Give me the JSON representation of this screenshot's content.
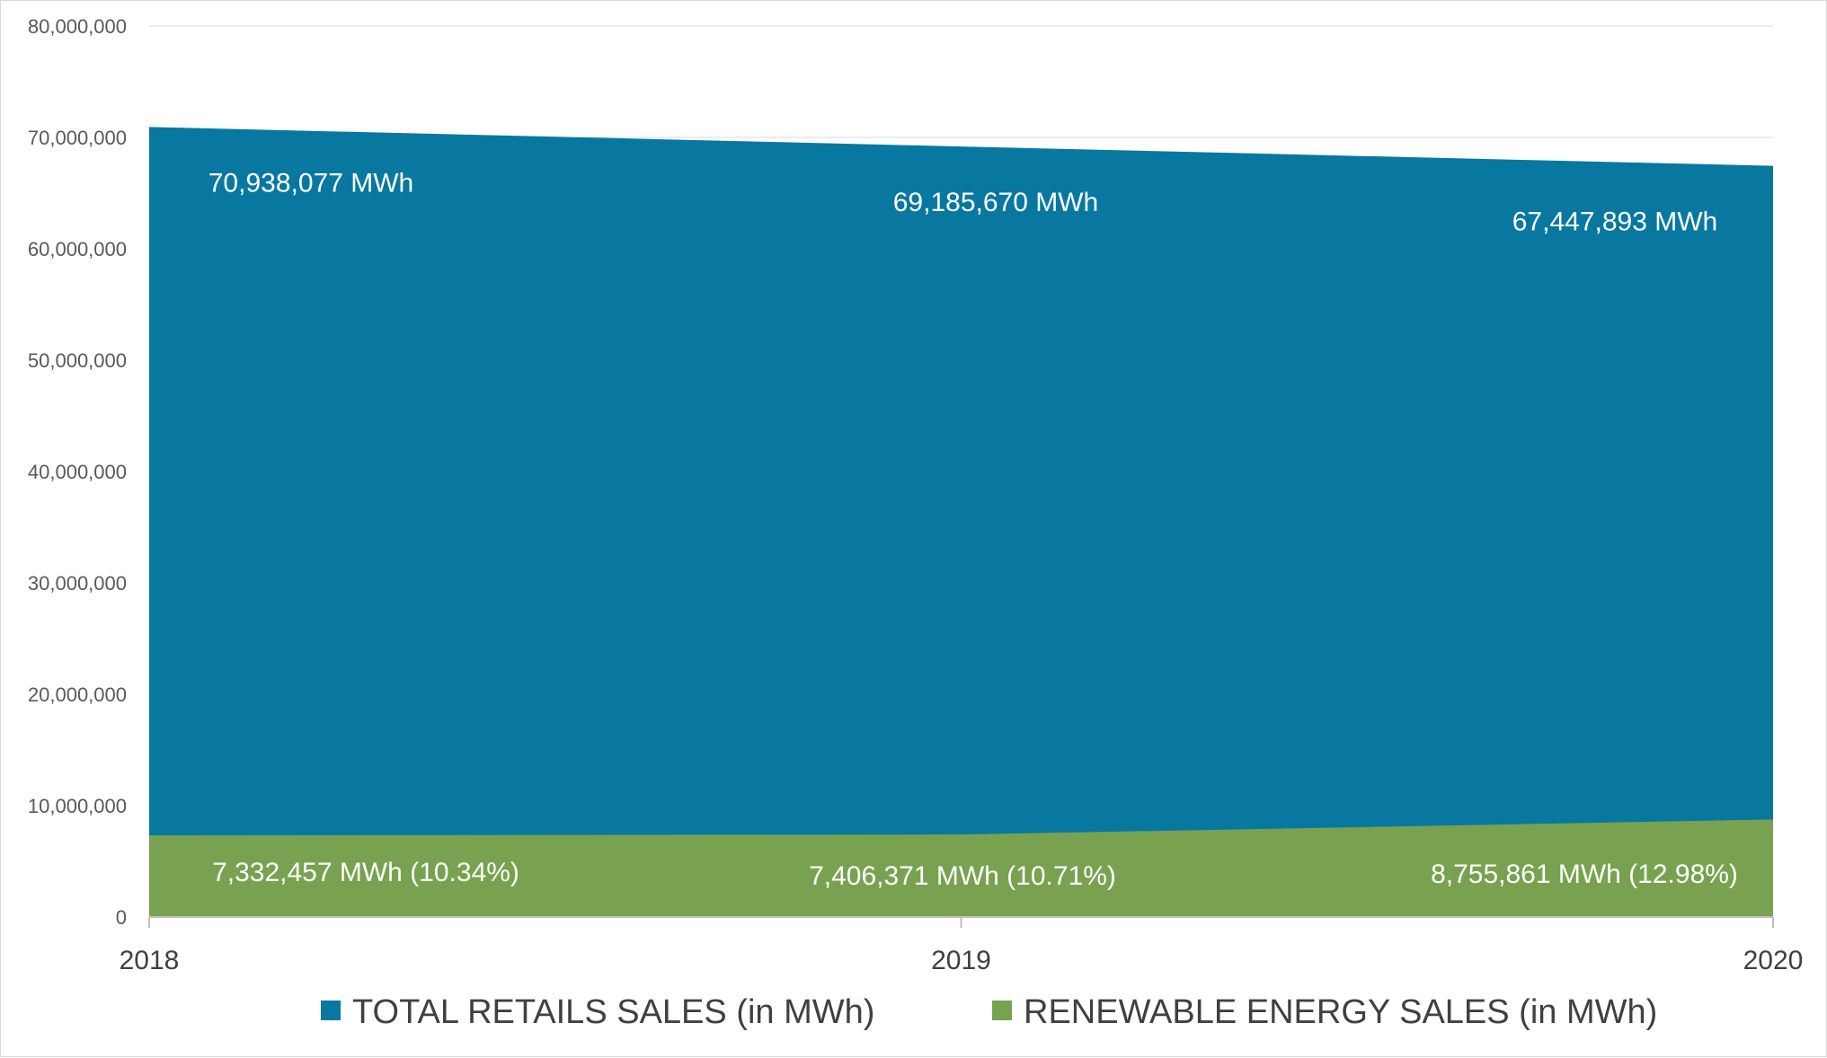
{
  "chart_data": {
    "type": "area",
    "x": [
      "2018",
      "2019",
      "2020"
    ],
    "ylim": [
      0,
      80000000
    ],
    "yticks": [
      0,
      10000000,
      20000000,
      30000000,
      40000000,
      50000000,
      60000000,
      70000000,
      80000000
    ],
    "ytick_labels": [
      "0",
      "10,000,000",
      "20,000,000",
      "30,000,000",
      "40,000,000",
      "50,000,000",
      "60,000,000",
      "70,000,000",
      "80,000,000"
    ],
    "grid": true,
    "legend_position": "bottom",
    "series": [
      {
        "name": "TOTAL RETAILS SALES (in MWh)",
        "color": "#0878a0",
        "values": [
          70938077,
          69185670,
          67447893
        ],
        "labels": [
          "70,938,077 MWh",
          "69,185,670 MWh",
          "67,447,893 MWh"
        ]
      },
      {
        "name": "RENEWABLE ENERGY SALES (in MWh)",
        "color": "#78a24f",
        "values": [
          7332457,
          7406371,
          8755861
        ],
        "labels": [
          "7,332,457 MWh (10.34%)",
          "7,406,371 MWh (10.71%)",
          "8,755,861 MWh (12.98%)"
        ]
      }
    ]
  }
}
